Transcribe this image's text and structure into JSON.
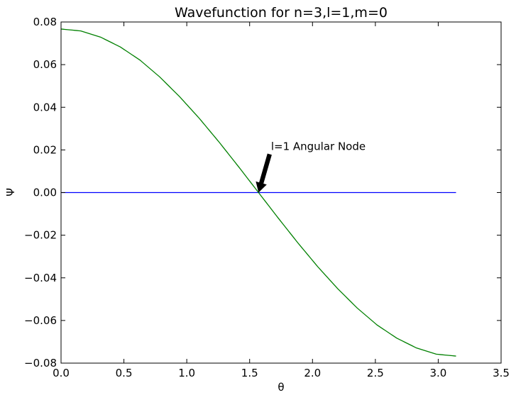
{
  "chart_data": {
    "type": "line",
    "title": "Wavefunction for n=3,l=1,m=0",
    "xlabel": "θ",
    "ylabel": "Ψ",
    "xlim": [
      0.0,
      3.5
    ],
    "ylim": [
      -0.08,
      0.08
    ],
    "xticks": [
      0.0,
      0.5,
      1.0,
      1.5,
      2.0,
      2.5,
      3.0,
      3.5
    ],
    "xtick_labels": [
      "0.0",
      "0.5",
      "1.0",
      "1.5",
      "2.0",
      "2.5",
      "3.0",
      "3.5"
    ],
    "yticks": [
      -0.08,
      -0.06,
      -0.04,
      -0.02,
      0.0,
      0.02,
      0.04,
      0.06,
      0.08
    ],
    "ytick_labels": [
      "−0.08",
      "−0.06",
      "−0.04",
      "−0.02",
      "0.00",
      "0.02",
      "0.04",
      "0.06",
      "0.08"
    ],
    "grid": false,
    "series": [
      {
        "color": "#0000ff",
        "x": [
          0.0,
          3.1416
        ],
        "y": [
          0.0,
          0.0
        ]
      },
      {
        "color": "#008000",
        "x": [
          0.0,
          0.1571,
          0.3142,
          0.4712,
          0.6283,
          0.7854,
          0.9425,
          1.0996,
          1.2566,
          1.4137,
          1.5708,
          1.7279,
          1.885,
          2.042,
          2.1991,
          2.3562,
          2.5133,
          2.6704,
          2.8274,
          2.9845,
          3.1416
        ],
        "y": [
          0.0767,
          0.0758,
          0.0729,
          0.0683,
          0.0621,
          0.0542,
          0.045,
          0.0348,
          0.0237,
          0.012,
          0.0,
          -0.012,
          -0.0237,
          -0.0348,
          -0.045,
          -0.0542,
          -0.0621,
          -0.0683,
          -0.0729,
          -0.0758,
          -0.0767
        ]
      }
    ],
    "annotations": [
      {
        "text": "l=1 Angular Node",
        "text_x": 1.67,
        "text_y": 0.02,
        "arrow_to_x": 1.5708,
        "arrow_to_y": 0.0
      }
    ]
  }
}
